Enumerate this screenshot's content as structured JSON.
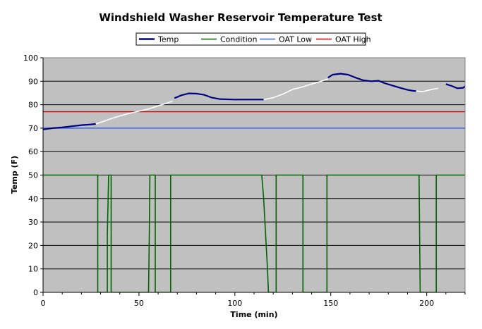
{
  "chart_data": {
    "type": "line",
    "title": "Windshield Washer Reservoir Temperature Test",
    "xlabel": "Time (min)",
    "ylabel": "Temp (F)",
    "xlim": [
      0,
      220
    ],
    "ylim": [
      0,
      100
    ],
    "xticks": [
      0,
      50,
      100,
      150,
      200
    ],
    "yticks": [
      0,
      10,
      20,
      30,
      40,
      50,
      60,
      70,
      80,
      90,
      100
    ],
    "grid": "horizontal",
    "legend_position": "top-center",
    "colors": {
      "plot_background": "#c0c0c0",
      "temp": "#000080",
      "temp_gap": "#ffffff",
      "condition": "#006400",
      "oat_low": "#3366ff",
      "oat_high": "#dd0000"
    },
    "legend": [
      {
        "name": "Temp",
        "key": "temp"
      },
      {
        "name": "Condition",
        "key": "condition"
      },
      {
        "name": "OAT Low",
        "key": "oat_low"
      },
      {
        "name": "OAT High",
        "key": "oat_high"
      }
    ],
    "series": [
      {
        "name": "Temp",
        "key": "temp",
        "segments": [
          {
            "style": "solid",
            "points": [
              [
                0,
                69.5
              ],
              [
                5,
                70
              ],
              [
                10,
                70.3
              ],
              [
                15,
                70.8
              ],
              [
                20,
                71.3
              ],
              [
                25,
                71.6
              ],
              [
                27.5,
                71.8
              ]
            ]
          },
          {
            "style": "gap",
            "points": [
              [
                27.5,
                71.8
              ],
              [
                32,
                73
              ],
              [
                36,
                74.2
              ],
              [
                40,
                75.2
              ],
              [
                45,
                76.3
              ],
              [
                50,
                77.2
              ],
              [
                55,
                78.2
              ],
              [
                60,
                79.5
              ],
              [
                65,
                80.8
              ],
              [
                67.5,
                81.5
              ]
            ]
          },
          {
            "style": "solid",
            "points": [
              [
                68.5,
                82.8
              ],
              [
                72,
                84
              ],
              [
                76,
                84.8
              ],
              [
                80,
                84.7
              ],
              [
                84,
                84.2
              ],
              [
                88,
                83
              ],
              [
                92,
                82.4
              ],
              [
                100,
                82.2
              ],
              [
                110,
                82.2
              ],
              [
                115,
                82.2
              ]
            ]
          },
          {
            "style": "gap",
            "points": [
              [
                115,
                82.2
              ],
              [
                120,
                83
              ],
              [
                125,
                84.5
              ],
              [
                130,
                86.5
              ],
              [
                135,
                87.5
              ],
              [
                140,
                88.8
              ],
              [
                145,
                90
              ],
              [
                148.5,
                91
              ]
            ]
          },
          {
            "style": "solid",
            "points": [
              [
                148.5,
                91.5
              ],
              [
                151,
                92.8
              ],
              [
                155,
                93.2
              ],
              [
                159,
                92.8
              ],
              [
                163,
                91.5
              ],
              [
                167,
                90.4
              ],
              [
                171,
                90
              ],
              [
                175,
                90.2
              ],
              [
                178,
                89.2
              ],
              [
                182,
                88.2
              ],
              [
                186,
                87.2
              ],
              [
                190,
                86.3
              ],
              [
                193,
                85.9
              ],
              [
                194.5,
                85.8
              ]
            ]
          },
          {
            "style": "gap",
            "points": [
              [
                194.5,
                85.8
              ],
              [
                198,
                85.6
              ],
              [
                202,
                86.4
              ],
              [
                206,
                87
              ]
            ]
          },
          {
            "style": "solid",
            "points": [
              [
                210,
                88.8
              ],
              [
                213,
                88
              ],
              [
                216,
                87
              ],
              [
                219,
                87.2
              ],
              [
                221,
                88.5
              ]
            ]
          }
        ]
      },
      {
        "name": "Condition",
        "key": "condition",
        "points": [
          [
            0,
            50
          ],
          [
            28.5,
            50
          ],
          [
            28.5,
            0
          ],
          [
            33.5,
            0
          ],
          [
            33.5,
            25
          ],
          [
            34.2,
            50
          ],
          [
            35.5,
            50
          ],
          [
            35.5,
            0
          ],
          [
            55,
            0
          ],
          [
            55.4,
            25
          ],
          [
            55.7,
            50
          ],
          [
            58.5,
            50
          ],
          [
            58.5,
            0
          ],
          [
            66.5,
            0
          ],
          [
            66.5,
            50
          ],
          [
            114,
            50
          ],
          [
            115,
            40
          ],
          [
            116,
            25
          ],
          [
            117,
            10
          ],
          [
            117.5,
            0
          ],
          [
            121.5,
            0
          ],
          [
            121.5,
            50
          ],
          [
            135.5,
            50
          ],
          [
            135.5,
            0
          ],
          [
            148,
            0
          ],
          [
            148,
            50
          ],
          [
            196,
            50
          ],
          [
            196.3,
            25
          ],
          [
            196.6,
            0
          ],
          [
            205,
            0
          ],
          [
            205,
            50
          ],
          [
            221,
            50
          ]
        ]
      },
      {
        "name": "OAT Low",
        "key": "oat_low",
        "points": [
          [
            0,
            70
          ],
          [
            221,
            70
          ]
        ]
      },
      {
        "name": "OAT High",
        "key": "oat_high",
        "points": [
          [
            0,
            77
          ],
          [
            221,
            77
          ]
        ]
      }
    ]
  }
}
